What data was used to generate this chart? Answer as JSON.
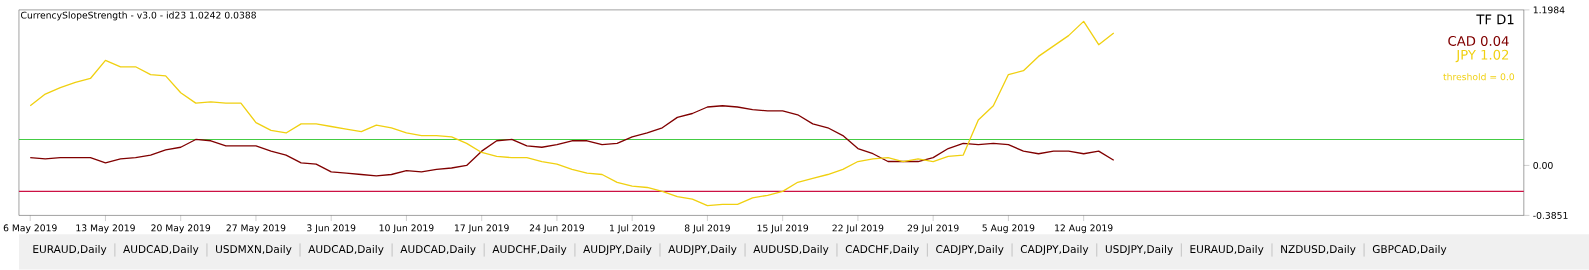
{
  "chart_data": {
    "type": "line",
    "title": "CurrencySlopeStrength - v3.0 - id23 1.0242 0.0388",
    "categories": [
      "6 May 2019",
      null,
      null,
      null,
      null,
      "13 May 2019",
      null,
      null,
      null,
      null,
      "20 May 2019",
      null,
      null,
      null,
      null,
      "27 May 2019",
      null,
      null,
      null,
      null,
      "3 Jun 2019",
      null,
      null,
      null,
      null,
      "10 Jun 2019",
      null,
      null,
      null,
      null,
      "17 Jun 2019",
      null,
      null,
      null,
      null,
      "24 Jun 2019",
      null,
      null,
      null,
      null,
      "1 Jul 2019",
      null,
      null,
      null,
      null,
      "8 Jul 2019",
      null,
      null,
      null,
      null,
      "15 Jul 2019",
      null,
      null,
      null,
      null,
      "22 Jul 2019",
      null,
      null,
      null,
      null,
      "29 Jul 2019",
      null,
      null,
      null,
      null,
      "5 Aug 2019",
      null,
      null,
      null,
      null,
      "12 Aug 2019",
      null,
      null,
      null,
      null,
      null,
      null,
      null,
      null,
      null,
      null,
      null,
      null,
      null,
      null,
      null,
      null,
      null,
      null,
      null,
      null,
      null,
      null,
      null,
      null,
      null,
      null,
      null,
      null,
      null
    ],
    "series": [
      {
        "name": "CAD 0.04",
        "color": "#800000",
        "values": [
          0.06,
          0.05,
          0.06,
          0.06,
          0.06,
          0.02,
          0.05,
          0.06,
          0.08,
          0.12,
          0.14,
          0.2,
          0.19,
          0.15,
          0.15,
          0.15,
          0.11,
          0.08,
          0.02,
          0.01,
          -0.05,
          -0.06,
          -0.07,
          -0.08,
          -0.07,
          -0.04,
          -0.05,
          -0.03,
          -0.02,
          0.0,
          0.11,
          0.19,
          0.2,
          0.15,
          0.14,
          0.16,
          0.19,
          0.19,
          0.16,
          0.17,
          0.22,
          0.25,
          0.29,
          0.37,
          0.4,
          0.45,
          0.46,
          0.45,
          0.43,
          0.42,
          0.42,
          0.39,
          0.32,
          0.29,
          0.23,
          0.13,
          0.09,
          0.03,
          0.03,
          0.03,
          0.06,
          0.13,
          0.17,
          0.16,
          0.17,
          0.16,
          0.11,
          0.09,
          0.11,
          0.11,
          0.09,
          0.11,
          0.04,
          null,
          null,
          null,
          null,
          null,
          null,
          null,
          null,
          null,
          null,
          null,
          null,
          null,
          null,
          null,
          null,
          null,
          null,
          null,
          null,
          null,
          null,
          null,
          null,
          null,
          null,
          null
        ]
      },
      {
        "name": "JPY 1.02",
        "color": "#f0d010",
        "values": [
          0.46,
          0.55,
          0.6,
          0.64,
          0.67,
          0.81,
          0.76,
          0.76,
          0.7,
          0.69,
          0.56,
          0.48,
          0.49,
          0.48,
          0.48,
          0.33,
          0.27,
          0.25,
          0.32,
          0.32,
          0.3,
          0.28,
          0.26,
          0.31,
          0.29,
          0.25,
          0.23,
          0.23,
          0.22,
          0.17,
          0.1,
          0.07,
          0.06,
          0.06,
          0.03,
          0.01,
          -0.03,
          -0.06,
          -0.07,
          -0.13,
          -0.16,
          -0.17,
          -0.2,
          -0.24,
          -0.26,
          -0.31,
          -0.3,
          -0.3,
          -0.25,
          -0.23,
          -0.2,
          -0.13,
          -0.1,
          -0.07,
          -0.03,
          0.03,
          0.05,
          0.06,
          0.03,
          0.05,
          0.03,
          0.07,
          0.08,
          0.35,
          0.46,
          0.7,
          0.73,
          0.84,
          0.92,
          1.0,
          1.11,
          0.93,
          1.02,
          null,
          null,
          null,
          null,
          null,
          null,
          null,
          null,
          null,
          null,
          null,
          null,
          null,
          null,
          null,
          null,
          null,
          null,
          null,
          null,
          null,
          null,
          null,
          null,
          null,
          null,
          null
        ]
      }
    ],
    "ylim": [
      -0.3851,
      1.1984
    ],
    "yticks": [
      1.1984,
      {
        "value": 0,
        "label": "0.00"
      },
      -0.3851
    ],
    "ref_lines": [
      {
        "axis": "y",
        "value": 0.2,
        "color": "#44cc44"
      },
      {
        "axis": "y",
        "value": -0.2,
        "color": "#cc1144"
      }
    ],
    "legend": "top right",
    "annotations": [
      "TF D1",
      "threshold = 0.0",
      "EURAUD,Daily",
      "AUDCAD,Daily",
      "USDMXN,Daily",
      "AUDCAD,Daily",
      "AUDCAD,Daily",
      "AUDCHF,Daily",
      "AUDJPY,Daily",
      "AUDJPY,Daily",
      "AUDUSD,Daily",
      "CADCHF,Daily",
      "CADJPY,Daily",
      "CADJPY,Daily",
      "USDJPY,Daily",
      "EURAUD,Daily",
      "NZDUSD,Daily",
      "GBPCAD,Daily"
    ]
  }
}
